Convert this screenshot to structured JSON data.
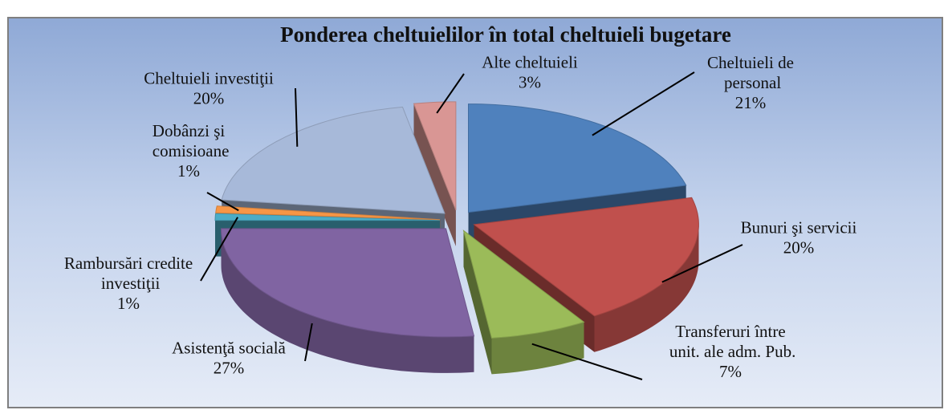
{
  "chart_data": {
    "type": "pie",
    "title": "Ponderea cheltuielilor în total cheltuieli bugetare",
    "categories": [
      "Cheltuieli de personal",
      "Bunuri şi servicii",
      "Transferuri între unit. ale adm. Pub.",
      "Asistenţă socială",
      "Rambursări credite investiţii",
      "Dobânzi şi comisioane",
      "Cheltuieli investiţii",
      "Alte cheltuieli"
    ],
    "values": [
      21,
      20,
      7,
      27,
      1,
      1,
      20,
      3
    ],
    "value_labels": [
      "21%",
      "20%",
      "7%",
      "27%",
      "1%",
      "1%",
      "20%",
      "3%"
    ],
    "colors": [
      "#4f81bd",
      "#c0504d",
      "#9bbb59",
      "#8064a2",
      "#4bacc6",
      "#f79646",
      "#a7b9d9",
      "#d99694"
    ]
  }
}
